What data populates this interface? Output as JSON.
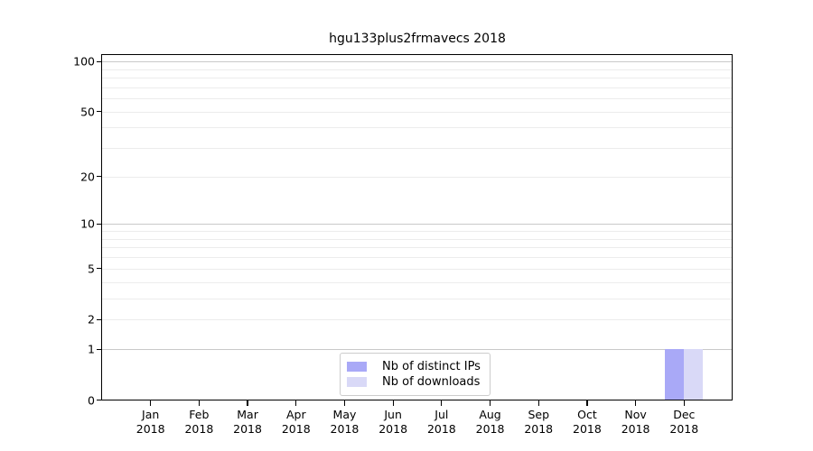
{
  "title": "hgu133plus2frmavecs 2018",
  "colors": {
    "distinct_ips_bar": "#a9a9f7",
    "downloads_bar": "#d9d9f7",
    "grid_major": "#c9c9c9",
    "grid_minor": "#ececec",
    "axis": "#000000",
    "legend_border": "#cccccc",
    "background": "#ffffff"
  },
  "legend": {
    "items": [
      {
        "label": "Nb of distinct IPs",
        "color": "#a9a9f7"
      },
      {
        "label": "Nb of downloads",
        "color": "#d9d9f7"
      }
    ]
  },
  "chart_data": {
    "type": "bar",
    "title": "hgu133plus2frmavecs 2018",
    "categories": [
      "Jan 2018",
      "Feb 2018",
      "Mar 2018",
      "Apr 2018",
      "May 2018",
      "Jun 2018",
      "Jul 2018",
      "Aug 2018",
      "Sep 2018",
      "Oct 2018",
      "Nov 2018",
      "Dec 2018"
    ],
    "series": [
      {
        "name": "Nb of distinct IPs",
        "color": "#a9a9f7",
        "values": [
          0,
          0,
          0,
          0,
          0,
          0,
          0,
          0,
          0,
          0,
          0,
          1
        ]
      },
      {
        "name": "Nb of downloads",
        "color": "#d9d9f7",
        "values": [
          0,
          0,
          0,
          0,
          0,
          0,
          0,
          0,
          0,
          0,
          0,
          1
        ]
      }
    ],
    "xlabel": "",
    "ylabel": "",
    "y_scale": "log1p",
    "ylim": [
      0,
      110
    ],
    "y_ticks": [
      0,
      1,
      2,
      5,
      10,
      20,
      50,
      100
    ],
    "y_major_gridlines": [
      1,
      10,
      100
    ],
    "y_minor_gridlines": [
      2,
      3,
      4,
      5,
      6,
      7,
      8,
      9,
      20,
      30,
      40,
      50,
      60,
      70,
      80,
      90
    ],
    "grid": true,
    "legend_position": "lower center"
  }
}
